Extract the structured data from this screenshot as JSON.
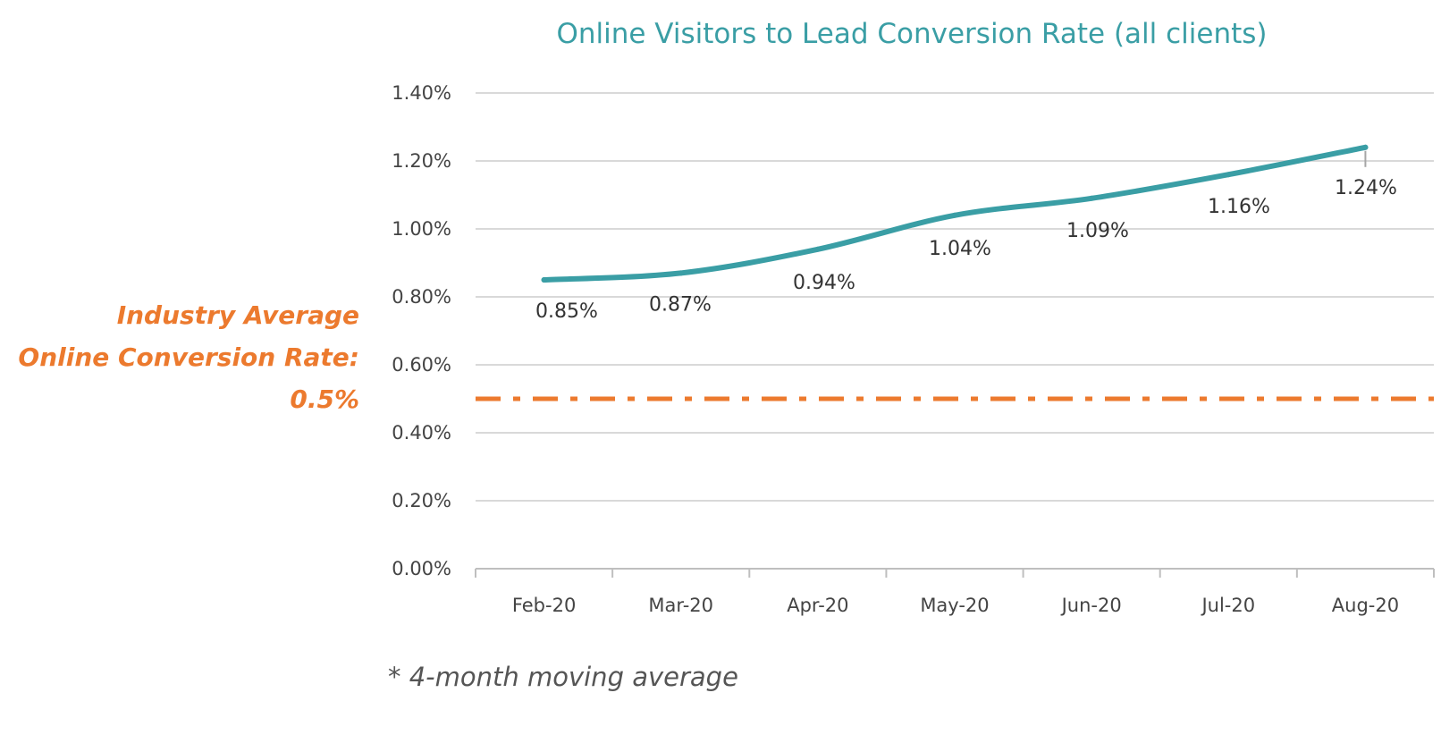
{
  "chart_data": {
    "type": "line",
    "title": "Online Visitors to Lead Conversion Rate (all clients)",
    "categories": [
      "Feb-20",
      "Mar-20",
      "Apr-20",
      "May-20",
      "Jun-20",
      "Jul-20",
      "Aug-20"
    ],
    "series": [
      {
        "values": [
          0.85,
          0.87,
          0.94,
          1.04,
          1.09,
          1.16,
          1.24
        ],
        "data_labels": [
          "0.85%",
          "0.87%",
          "0.94%",
          "1.04%",
          "1.09%",
          "1.16%",
          "1.24%"
        ],
        "color": "#3a9ea5"
      }
    ],
    "reference_line": {
      "value": 0.5,
      "style": "dash-dot",
      "color": "#ec7a2e",
      "annotation": [
        "Industry Average",
        "Online Conversion Rate:",
        "0.5%"
      ]
    },
    "yticks": [
      0,
      0.2,
      0.4,
      0.6,
      0.8,
      1.0,
      1.2,
      1.4
    ],
    "ytick_labels": [
      "0.00%",
      "0.20%",
      "0.40%",
      "0.60%",
      "0.80%",
      "1.00%",
      "1.20%",
      "1.40%"
    ],
    "ylim": [
      0,
      1.4
    ],
    "grid": true,
    "legend": "none",
    "footnote": "* 4-month moving average"
  }
}
